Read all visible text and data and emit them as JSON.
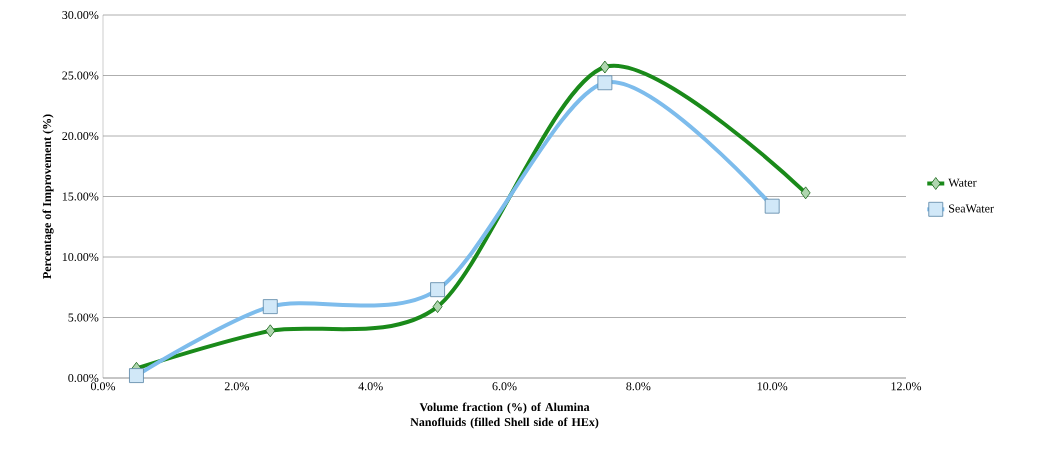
{
  "chart_data": {
    "type": "line",
    "xlabel": "Volume fraction (%)  of Alumina Nanofluids (filled Shell side of HEx)",
    "ylabel": "Percentage of Improvement (%)",
    "xlim": [
      0,
      12
    ],
    "ylim": [
      0,
      30
    ],
    "xticks": [
      {
        "value": 0,
        "label": "0.0%"
      },
      {
        "value": 2,
        "label": "2.0%"
      },
      {
        "value": 4,
        "label": "4.0%"
      },
      {
        "value": 6,
        "label": "6.0%"
      },
      {
        "value": 8,
        "label": "8.0%"
      },
      {
        "value": 10,
        "label": "10.0%"
      },
      {
        "value": 12,
        "label": "12.0%"
      }
    ],
    "yticks": [
      {
        "value": 0,
        "label": "0.00%"
      },
      {
        "value": 5,
        "label": "5.00%"
      },
      {
        "value": 10,
        "label": "10.00%"
      },
      {
        "value": 15,
        "label": "15.00%"
      },
      {
        "value": 20,
        "label": "20.00%"
      },
      {
        "value": 25,
        "label": "25.00%"
      },
      {
        "value": 30,
        "label": "30.00%"
      }
    ],
    "grid": "y",
    "legend": "right",
    "series": [
      {
        "name": "Water",
        "color": "#1a8a1a",
        "marker": "diamond",
        "x": [
          0.5,
          2.5,
          5.0,
          7.5,
          10.5
        ],
        "values": [
          0.8,
          3.9,
          5.9,
          25.7,
          15.3
        ]
      },
      {
        "name": "SeaWater",
        "color": "#7dbcec",
        "marker": "square",
        "x": [
          0.5,
          2.5,
          5.0,
          7.5,
          10.0
        ],
        "values": [
          0.2,
          5.9,
          7.3,
          24.4,
          14.2
        ]
      }
    ]
  }
}
